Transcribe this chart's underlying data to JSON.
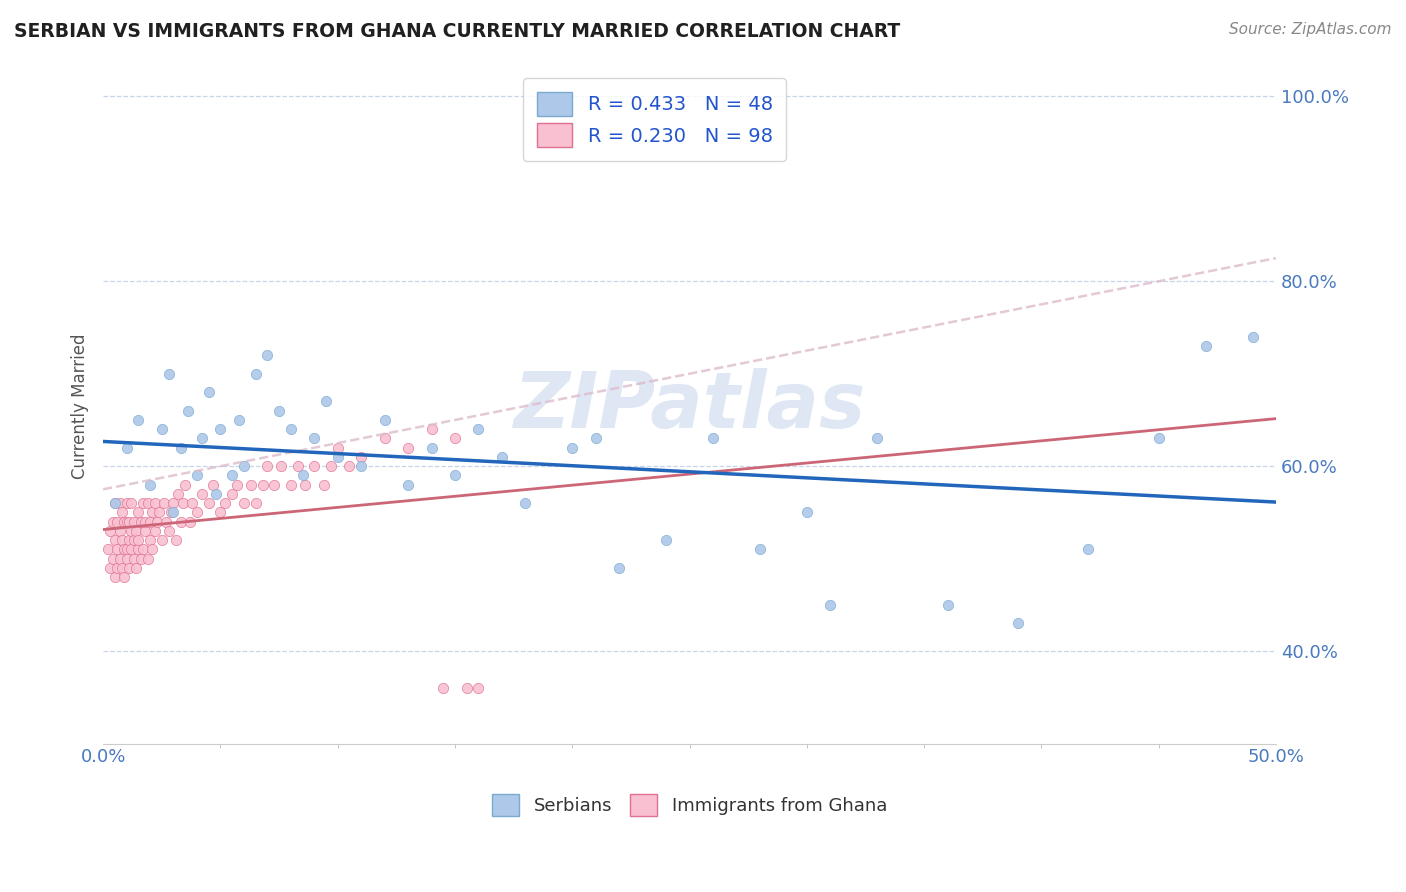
{
  "title": "SERBIAN VS IMMIGRANTS FROM GHANA CURRENTLY MARRIED CORRELATION CHART",
  "source_text": "Source: ZipAtlas.com",
  "ylabel": "Currently Married",
  "xlim": [
    0.0,
    0.5
  ],
  "ylim": [
    0.3,
    1.03
  ],
  "ytick_vals": [
    0.4,
    0.6,
    0.8,
    1.0
  ],
  "ytick_labels": [
    "40.0%",
    "60.0%",
    "80.0%",
    "100.0%"
  ],
  "xtick_major": [
    0.0,
    0.5
  ],
  "xtick_major_labels": [
    "0.0%",
    "50.0%"
  ],
  "xtick_minor": [
    0.05,
    0.1,
    0.15,
    0.2,
    0.25,
    0.3,
    0.35,
    0.4,
    0.45
  ],
  "series_serbian": {
    "label": "Serbians",
    "R": 0.433,
    "N": 48,
    "color": "#adc8e8",
    "edge_color": "#7aaad0",
    "trend_color": "#2266bb",
    "trend_style": "solid",
    "trend_lw": 2.5,
    "x": [
      0.005,
      0.01,
      0.015,
      0.02,
      0.025,
      0.028,
      0.03,
      0.033,
      0.036,
      0.04,
      0.042,
      0.045,
      0.048,
      0.05,
      0.055,
      0.058,
      0.06,
      0.065,
      0.07,
      0.075,
      0.08,
      0.085,
      0.09,
      0.095,
      0.1,
      0.11,
      0.12,
      0.13,
      0.14,
      0.15,
      0.16,
      0.17,
      0.18,
      0.2,
      0.21,
      0.22,
      0.24,
      0.26,
      0.28,
      0.3,
      0.31,
      0.33,
      0.36,
      0.39,
      0.42,
      0.45,
      0.47,
      0.49
    ],
    "y": [
      0.56,
      0.62,
      0.65,
      0.58,
      0.64,
      0.7,
      0.55,
      0.62,
      0.66,
      0.59,
      0.63,
      0.68,
      0.57,
      0.64,
      0.59,
      0.65,
      0.6,
      0.7,
      0.72,
      0.66,
      0.64,
      0.59,
      0.63,
      0.67,
      0.61,
      0.6,
      0.65,
      0.58,
      0.62,
      0.59,
      0.64,
      0.61,
      0.56,
      0.62,
      0.63,
      0.49,
      0.52,
      0.63,
      0.51,
      0.55,
      0.45,
      0.63,
      0.45,
      0.43,
      0.51,
      0.63,
      0.73,
      0.74
    ]
  },
  "series_ghana": {
    "label": "Immigrants from Ghana",
    "R": 0.23,
    "N": 98,
    "color": "#f8c0d0",
    "edge_color": "#e07090",
    "trend_color": "#cc6677",
    "trend_style": "solid",
    "trend_lw": 2.0,
    "trend_dashed_color": "#ddaabb",
    "x": [
      0.002,
      0.003,
      0.003,
      0.004,
      0.004,
      0.005,
      0.005,
      0.005,
      0.006,
      0.006,
      0.006,
      0.007,
      0.007,
      0.007,
      0.008,
      0.008,
      0.008,
      0.009,
      0.009,
      0.009,
      0.01,
      0.01,
      0.01,
      0.01,
      0.011,
      0.011,
      0.011,
      0.012,
      0.012,
      0.012,
      0.013,
      0.013,
      0.013,
      0.014,
      0.014,
      0.015,
      0.015,
      0.015,
      0.016,
      0.016,
      0.017,
      0.017,
      0.018,
      0.018,
      0.019,
      0.019,
      0.02,
      0.02,
      0.021,
      0.021,
      0.022,
      0.022,
      0.023,
      0.024,
      0.025,
      0.026,
      0.027,
      0.028,
      0.029,
      0.03,
      0.031,
      0.032,
      0.033,
      0.034,
      0.035,
      0.037,
      0.038,
      0.04,
      0.042,
      0.045,
      0.047,
      0.05,
      0.052,
      0.055,
      0.057,
      0.06,
      0.063,
      0.065,
      0.068,
      0.07,
      0.073,
      0.076,
      0.08,
      0.083,
      0.086,
      0.09,
      0.094,
      0.097,
      0.1,
      0.105,
      0.11,
      0.12,
      0.13,
      0.14,
      0.145,
      0.15,
      0.155,
      0.16
    ],
    "y": [
      0.51,
      0.53,
      0.49,
      0.54,
      0.5,
      0.52,
      0.48,
      0.56,
      0.51,
      0.54,
      0.49,
      0.53,
      0.5,
      0.56,
      0.52,
      0.49,
      0.55,
      0.51,
      0.54,
      0.48,
      0.54,
      0.51,
      0.5,
      0.56,
      0.52,
      0.54,
      0.49,
      0.53,
      0.51,
      0.56,
      0.54,
      0.5,
      0.52,
      0.53,
      0.49,
      0.55,
      0.51,
      0.52,
      0.54,
      0.5,
      0.56,
      0.51,
      0.53,
      0.54,
      0.5,
      0.56,
      0.52,
      0.54,
      0.51,
      0.55,
      0.56,
      0.53,
      0.54,
      0.55,
      0.52,
      0.56,
      0.54,
      0.53,
      0.55,
      0.56,
      0.52,
      0.57,
      0.54,
      0.56,
      0.58,
      0.54,
      0.56,
      0.55,
      0.57,
      0.56,
      0.58,
      0.55,
      0.56,
      0.57,
      0.58,
      0.56,
      0.58,
      0.56,
      0.58,
      0.6,
      0.58,
      0.6,
      0.58,
      0.6,
      0.58,
      0.6,
      0.58,
      0.6,
      0.62,
      0.6,
      0.61,
      0.63,
      0.62,
      0.64,
      0.36,
      0.63,
      0.36,
      0.36
    ]
  },
  "watermark": "ZIPatlas",
  "watermark_color": "#c8d8ec",
  "background_color": "#ffffff",
  "grid_color": "#c8d4e8",
  "title_color": "#202020",
  "tick_color": "#4a7abf"
}
